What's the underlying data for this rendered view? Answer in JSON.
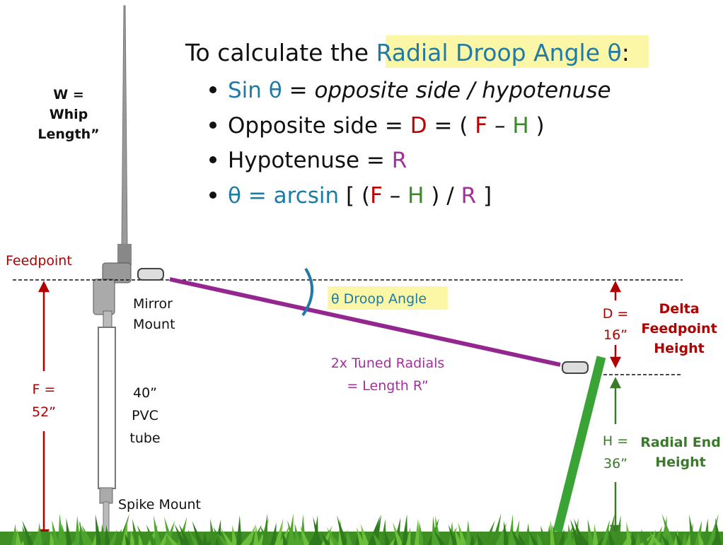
{
  "formula": {
    "title": [
      "To calculate the ",
      "Radial Droop Angle θ",
      ":"
    ],
    "bullets": [
      [
        "Sin θ",
        " = ",
        "opposite side / hypotenuse"
      ],
      [
        "Opposite side = ",
        "D",
        " = ( ",
        "F",
        " – ",
        "H",
        " )"
      ],
      [
        "Hypotenuse = ",
        "R"
      ],
      [
        "θ = arcsin",
        " [ (",
        "F",
        " – ",
        "H",
        " ) / ",
        "R",
        " ]"
      ]
    ]
  },
  "labels": {
    "whip": [
      "W =",
      "Whip",
      "Length”"
    ],
    "feedpoint": "Feedpoint",
    "mirror_mount": [
      "Mirror",
      "Mount"
    ],
    "pvc": [
      "40”",
      "PVC",
      "tube"
    ],
    "spike_mount": "Spike Mount",
    "f": [
      "F =",
      "52”"
    ],
    "droop_angle": "θ Droop Angle",
    "radials": [
      "2x Tuned Radials",
      "= Length R”"
    ],
    "d": [
      "D =",
      "16”"
    ],
    "delta": [
      "Delta",
      "Feedpoint",
      "Height"
    ],
    "h": [
      "H =",
      "36”"
    ],
    "radial_end": [
      "Radial End",
      "Height"
    ]
  }
}
